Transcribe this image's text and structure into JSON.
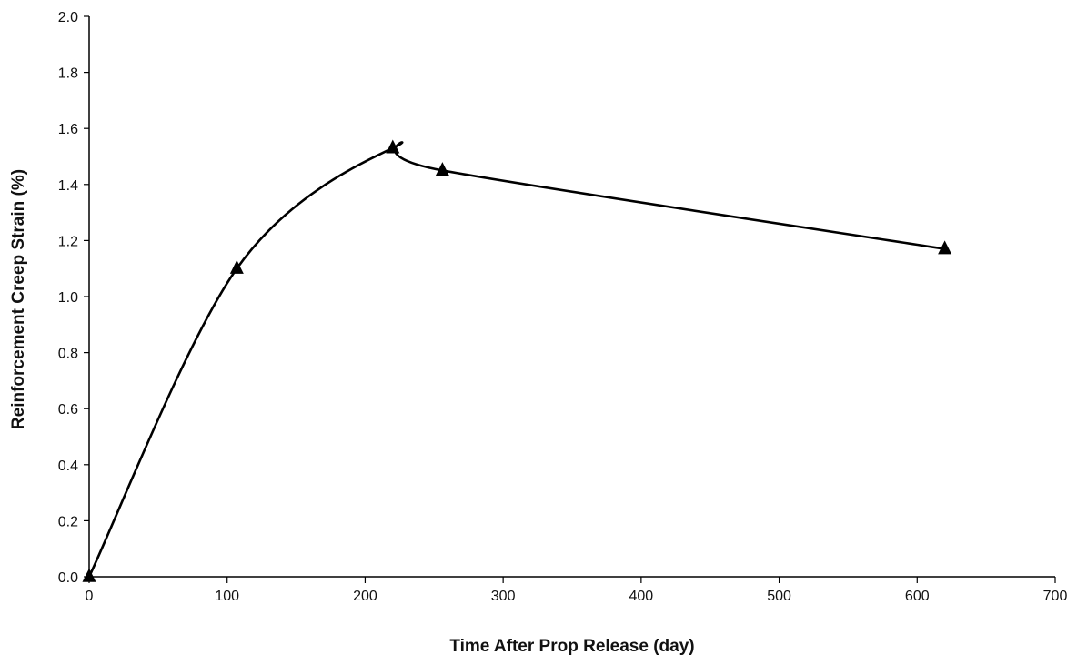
{
  "chart_data": {
    "type": "line",
    "title": "",
    "xlabel": "Time After Prop Release (day)",
    "ylabel": "Reinforcement Creep Strain (%)",
    "xlim": [
      0,
      700
    ],
    "ylim": [
      0,
      2.0
    ],
    "x_ticks": [
      "0",
      "100",
      "200",
      "300",
      "400",
      "500",
      "600",
      "700"
    ],
    "y_ticks": [
      "0.0",
      "0.2",
      "0.4",
      "0.6",
      "0.8",
      "1.0",
      "1.2",
      "1.4",
      "1.6",
      "1.8",
      "2.0"
    ],
    "grid": false,
    "legend": "none",
    "smoothed": true,
    "marker": "triangle",
    "series": [
      {
        "x": [
          0,
          107,
          220,
          256,
          620
        ],
        "y": [
          0.0,
          1.1,
          1.53,
          1.45,
          1.17
        ],
        "color": "#000000"
      }
    ]
  }
}
